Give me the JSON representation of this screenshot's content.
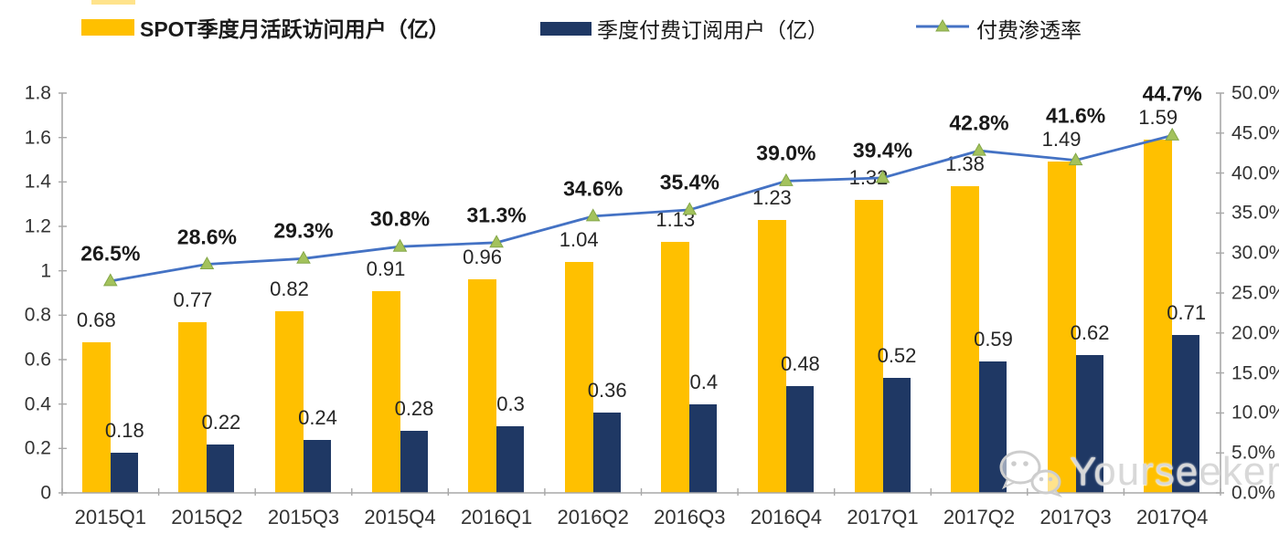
{
  "legend": {
    "items": [
      {
        "label": "SPOT季度月活跃访问用户（亿）",
        "swatch": "yellow-bar"
      },
      {
        "label": "季度付费订阅用户（亿）",
        "swatch": "navy-bar"
      },
      {
        "label": "付费渗透率",
        "swatch": "line-marker"
      }
    ]
  },
  "watermark": {
    "text": "Yourseeker",
    "icon": "wechat-icon"
  },
  "colors": {
    "mau_bar": "#FFC000",
    "paid_bar": "#1F3864",
    "line": "#4472C4",
    "marker_fill": "#A3C25C",
    "marker_edge": "#84A748",
    "axis": "#A8A8A8",
    "text": "#262626",
    "watermark": "#D6D6D6"
  },
  "chart_data": {
    "type": "bar+line combo",
    "categories": [
      "2015Q1",
      "2015Q2",
      "2015Q3",
      "2015Q4",
      "2016Q1",
      "2016Q2",
      "2016Q3",
      "2016Q4",
      "2017Q1",
      "2017Q2",
      "2017Q3",
      "2017Q4"
    ],
    "series": [
      {
        "name": "SPOT季度月活跃访问用户（亿）",
        "type": "bar",
        "axis": "left",
        "color": "#FFC000",
        "values": [
          0.68,
          0.77,
          0.82,
          0.91,
          0.96,
          1.04,
          1.13,
          1.23,
          1.32,
          1.38,
          1.49,
          1.59
        ]
      },
      {
        "name": "季度付费订阅用户（亿）",
        "type": "bar",
        "axis": "left",
        "color": "#1F3864",
        "values": [
          0.18,
          0.22,
          0.24,
          0.28,
          0.3,
          0.36,
          0.4,
          0.48,
          0.52,
          0.59,
          0.62,
          0.71
        ]
      },
      {
        "name": "付费渗透率",
        "type": "line",
        "axis": "right",
        "color": "#4472C4",
        "unit": "%",
        "values": [
          26.5,
          28.6,
          29.3,
          30.8,
          31.3,
          34.6,
          35.4,
          39.0,
          39.4,
          42.8,
          41.6,
          44.7
        ]
      }
    ],
    "left_axis": {
      "min": 0,
      "max": 1.8,
      "step": 0.2,
      "ticks": [
        "0",
        "0.2",
        "0.4",
        "0.6",
        "0.8",
        "1",
        "1.2",
        "1.4",
        "1.6",
        "1.8"
      ]
    },
    "right_axis": {
      "min": 0,
      "max": 50,
      "step": 5,
      "unit": "%",
      "ticks": [
        "0.0%",
        "5.0%",
        "10.0%",
        "15.0%",
        "20.0%",
        "25.0%",
        "30.0%",
        "35.0%",
        "40.0%",
        "45.0%",
        "50.0%"
      ]
    },
    "legend_position": "top",
    "grid": false,
    "data_labels": true
  }
}
